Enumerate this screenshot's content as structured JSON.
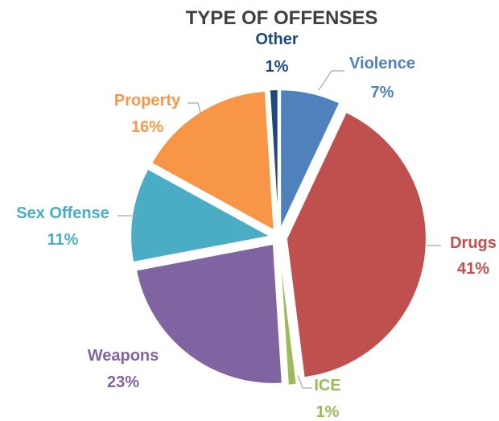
{
  "chart_data": {
    "type": "pie",
    "title": "TYPE OF OFFENSES",
    "slices": [
      {
        "label": "Violence",
        "value": 7,
        "value_text": "7%",
        "color": "#4F81BD"
      },
      {
        "label": "Drugs",
        "value": 41,
        "value_text": "41%",
        "color": "#C0504D"
      },
      {
        "label": "ICE",
        "value": 1,
        "value_text": "1%",
        "color": "#9BBB59"
      },
      {
        "label": "Weapons",
        "value": 23,
        "value_text": "23%",
        "color": "#8064A2"
      },
      {
        "label": "Sex Offense",
        "value": 11,
        "value_text": "11%",
        "color": "#4BACC6"
      },
      {
        "label": "Property",
        "value": 16,
        "value_text": "16%",
        "color": "#F79646"
      },
      {
        "label": "Other",
        "value": 1,
        "value_text": "1%",
        "color": "#1F497D"
      }
    ],
    "exploded": true,
    "legend": "none"
  }
}
